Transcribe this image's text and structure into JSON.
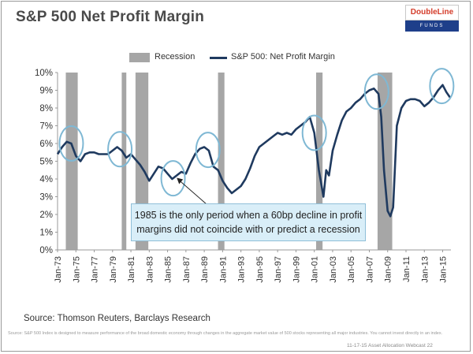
{
  "header": {
    "title": "S&P 500 Net Profit Margin"
  },
  "logo": {
    "top_text": "DoubleLine",
    "bottom_text": "FUNDS"
  },
  "legend": {
    "recession_label": "Recession",
    "series_label": "S&P 500: Net Profit Margin"
  },
  "annotation": {
    "line1": "1985 is the only period when  a 60bp decline in profit",
    "line2": "margins did not coincide with or predict a recession"
  },
  "footer": {
    "source": "Source: Thomson Reuters, Barclays Research",
    "disclaimer": "Source: S&P 500 Index is designed to measure performance of the broad domestic economy through changes in the aggregate market value of 500 stocks representing all major industries. You cannot invest directly in an index.",
    "date_line": "11-17-15 Asset Allocation Webcast 22"
  },
  "colors": {
    "line": "#1f3a5f",
    "recession": "#a6a6a6",
    "circle": "#7fb8d4",
    "axis_text": "#333333"
  },
  "chart_data": {
    "type": "line",
    "title": "S&P 500 Net Profit Margin",
    "xlabel": "",
    "ylabel": "",
    "ylim": [
      0,
      10
    ],
    "y_ticks": [
      "0%",
      "1%",
      "2%",
      "3%",
      "4%",
      "5%",
      "6%",
      "7%",
      "8%",
      "9%",
      "10%"
    ],
    "x_ticks": [
      "Jan-73",
      "Jan-75",
      "Jan-77",
      "Jan-79",
      "Jan-81",
      "Jan-83",
      "Jan-85",
      "Jan-87",
      "Jan-89",
      "Jan-91",
      "Jan-93",
      "Jan-95",
      "Jan-97",
      "Jan-99",
      "Jan-01",
      "Jan-03",
      "Jan-05",
      "Jan-07",
      "Jan-09",
      "Jan-11",
      "Jan-13",
      "Jan-15"
    ],
    "x_range": [
      1973.0,
      2015.9
    ],
    "recessions": [
      {
        "start": 1973.9,
        "end": 1975.2
      },
      {
        "start": 1980.0,
        "end": 1980.5
      },
      {
        "start": 1981.5,
        "end": 1982.9
      },
      {
        "start": 1990.5,
        "end": 1991.2
      },
      {
        "start": 2001.2,
        "end": 2001.9
      },
      {
        "start": 2007.9,
        "end": 2009.5
      }
    ],
    "series": [
      {
        "name": "S&P 500: Net Profit Margin",
        "x": [
          1973.0,
          1973.5,
          1974.0,
          1974.5,
          1975.0,
          1975.5,
          1976.0,
          1976.5,
          1977.0,
          1977.5,
          1978.0,
          1978.5,
          1979.0,
          1979.5,
          1980.0,
          1980.5,
          1981.0,
          1981.5,
          1982.0,
          1982.5,
          1983.0,
          1983.5,
          1984.0,
          1984.5,
          1985.0,
          1985.5,
          1986.0,
          1986.5,
          1987.0,
          1987.5,
          1988.0,
          1988.5,
          1989.0,
          1989.5,
          1990.0,
          1990.5,
          1991.0,
          1991.5,
          1992.0,
          1992.5,
          1993.0,
          1993.5,
          1994.0,
          1994.5,
          1995.0,
          1995.5,
          1996.0,
          1996.5,
          1997.0,
          1997.5,
          1998.0,
          1998.5,
          1999.0,
          1999.5,
          2000.0,
          2000.5,
          2001.0,
          2001.5,
          2002.0,
          2002.3,
          2002.6,
          2003.0,
          2003.5,
          2004.0,
          2004.5,
          2005.0,
          2005.5,
          2006.0,
          2006.5,
          2007.0,
          2007.5,
          2008.0,
          2008.3,
          2008.6,
          2009.0,
          2009.3,
          2009.6,
          2010.0,
          2010.5,
          2011.0,
          2011.5,
          2012.0,
          2012.5,
          2013.0,
          2013.5,
          2014.0,
          2014.5,
          2015.0,
          2015.4,
          2015.8
        ],
        "values": [
          5.4,
          5.8,
          6.1,
          6.0,
          5.3,
          5.0,
          5.4,
          5.5,
          5.5,
          5.4,
          5.4,
          5.4,
          5.6,
          5.8,
          5.6,
          5.2,
          5.4,
          5.1,
          4.8,
          4.4,
          3.9,
          4.3,
          4.7,
          4.6,
          4.3,
          4.0,
          4.2,
          4.4,
          4.3,
          4.9,
          5.4,
          5.7,
          5.8,
          5.6,
          4.7,
          4.5,
          3.9,
          3.5,
          3.2,
          3.4,
          3.6,
          4.0,
          4.6,
          5.3,
          5.8,
          6.0,
          6.2,
          6.4,
          6.6,
          6.5,
          6.6,
          6.5,
          6.8,
          7.0,
          7.2,
          7.5,
          6.6,
          4.5,
          3.0,
          4.5,
          4.2,
          5.6,
          6.5,
          7.3,
          7.8,
          8.0,
          8.3,
          8.5,
          8.8,
          9.0,
          9.1,
          8.8,
          7.5,
          4.5,
          2.2,
          1.9,
          2.4,
          7.0,
          8.0,
          8.4,
          8.5,
          8.5,
          8.4,
          8.1,
          8.3,
          8.6,
          9.0,
          9.3,
          8.9,
          8.6
        ]
      }
    ],
    "highlight_circles": [
      1974.5,
      1979.8,
      1985.6,
      1989.4,
      2001.0,
      2007.8,
      2014.9
    ],
    "annotation_arrow_target": 1986.0
  }
}
